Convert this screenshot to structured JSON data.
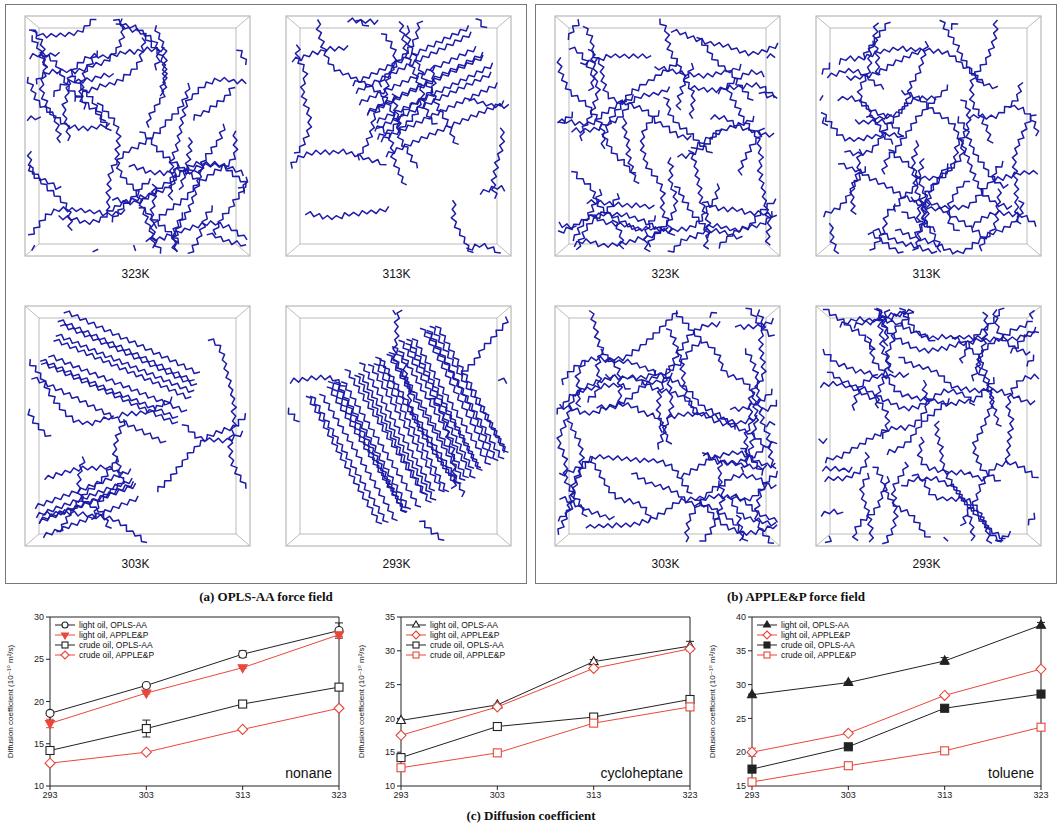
{
  "snapshots": [
    {
      "caption": "(a) OPLS-AA force field",
      "labels": [
        "323K",
        "313K",
        "303K",
        "293K"
      ]
    },
    {
      "caption": "(b) APPLE&P force field",
      "labels": [
        "323K",
        "313K",
        "303K",
        "293K"
      ]
    }
  ],
  "caption": "(c) Diffusion coefficient",
  "chart_data": [
    {
      "type": "line",
      "title": "nonane",
      "y_label": "Diffusion coefficient (10⁻¹⁰ m²/s)",
      "x": [
        293,
        303,
        313,
        323
      ],
      "xlim": [
        293,
        323
      ],
      "xticks": [
        293,
        303,
        313,
        323
      ],
      "ylim": [
        10,
        30
      ],
      "yticks": [
        10,
        15,
        20,
        25,
        30
      ],
      "legend": "top-left",
      "series": [
        {
          "name": "light oil, OPLS-AA",
          "color": "#222222",
          "marker": "circle-open",
          "values": [
            18.6,
            21.9,
            25.6,
            28.4
          ],
          "errors": [
            0.1,
            0.1,
            0.4,
            0.9
          ]
        },
        {
          "name": "light oil, APPLE&P",
          "color": "#e8473a",
          "marker": "triangle-down-filled",
          "values": [
            17.4,
            21.0,
            24.0,
            27.9
          ],
          "errors": [
            0.5,
            0.1,
            0.1,
            0.2
          ]
        },
        {
          "name": "crude oil, OPLS-AA",
          "color": "#222222",
          "marker": "square-open",
          "values": [
            14.2,
            16.8,
            19.7,
            21.7
          ],
          "errors": [
            0.2,
            1.0,
            0.4,
            0.1
          ]
        },
        {
          "name": "crude oil, APPLE&P",
          "color": "#e8473a",
          "marker": "diamond-open",
          "values": [
            12.7,
            14.0,
            16.7,
            19.2
          ],
          "errors": [
            0.1,
            0.1,
            0.1,
            0.1
          ]
        }
      ]
    },
    {
      "type": "line",
      "title": "cycloheptane",
      "y_label": "Diffusion coefficient (10⁻¹⁰ m²/s)",
      "x": [
        293,
        303,
        313,
        323
      ],
      "xlim": [
        293,
        323
      ],
      "xticks": [
        293,
        303,
        313,
        323
      ],
      "ylim": [
        10,
        35
      ],
      "yticks": [
        10,
        15,
        20,
        25,
        30,
        35
      ],
      "legend": "top-left",
      "series": [
        {
          "name": "light oil, OPLS-AA",
          "color": "#222222",
          "marker": "triangle-open",
          "values": [
            19.7,
            22.0,
            28.4,
            30.7
          ],
          "errors": [
            0.2,
            0.1,
            0.3,
            0.7
          ]
        },
        {
          "name": "light oil, APPLE&P",
          "color": "#e8473a",
          "marker": "diamond-open",
          "values": [
            17.5,
            21.7,
            27.4,
            30.3
          ],
          "errors": [
            0.2,
            0.1,
            0.2,
            0.2
          ]
        },
        {
          "name": "crude oil, OPLS-AA",
          "color": "#222222",
          "marker": "square-open",
          "values": [
            14.2,
            18.8,
            20.2,
            22.8
          ],
          "errors": [
            0.1,
            0.1,
            0.1,
            0.1
          ]
        },
        {
          "name": "crude oil, APPLE&P",
          "color": "#e8473a",
          "marker": "square-open",
          "values": [
            12.7,
            14.9,
            19.3,
            21.7
          ],
          "errors": [
            0.1,
            0.1,
            0.1,
            0.1
          ]
        }
      ]
    },
    {
      "type": "line",
      "title": "toluene",
      "y_label": "Diffusion coefficient (10⁻¹⁰ m²/s)",
      "x": [
        293,
        303,
        313,
        323
      ],
      "xlim": [
        293,
        323
      ],
      "xticks": [
        293,
        303,
        313,
        323
      ],
      "ylim": [
        15,
        40
      ],
      "yticks": [
        15,
        20,
        25,
        30,
        35,
        40
      ],
      "legend": "top-left",
      "series": [
        {
          "name": "light oil, OPLS-AA",
          "color": "#222222",
          "marker": "triangle-filled",
          "values": [
            28.5,
            30.3,
            33.5,
            38.8
          ],
          "errors": [
            0.1,
            0.1,
            0.5,
            0.4
          ]
        },
        {
          "name": "light oil, APPLE&P",
          "color": "#e8473a",
          "marker": "diamond-open",
          "values": [
            20.0,
            22.8,
            28.4,
            32.3
          ],
          "errors": [
            0.6,
            0.2,
            0.1,
            0.2
          ]
        },
        {
          "name": "crude oil, OPLS-AA",
          "color": "#222222",
          "marker": "square-filled",
          "values": [
            17.5,
            20.8,
            26.5,
            28.6
          ],
          "errors": [
            0.5,
            0.1,
            0.1,
            0.1
          ]
        },
        {
          "name": "crude oil, APPLE&P",
          "color": "#e8473a",
          "marker": "square-open",
          "values": [
            15.6,
            18.0,
            20.2,
            23.7
          ],
          "errors": [
            0.1,
            0.1,
            0.1,
            0.1
          ]
        }
      ]
    }
  ]
}
